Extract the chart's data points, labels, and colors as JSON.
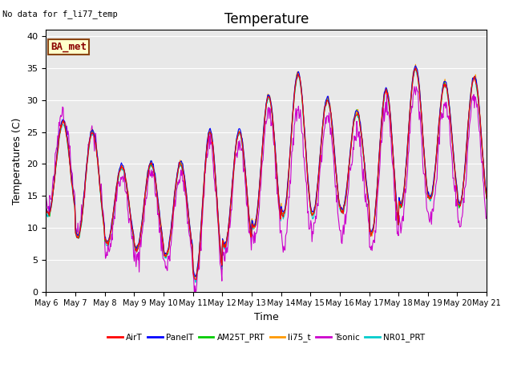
{
  "title": "Temperature",
  "ylabel": "Temperatures (C)",
  "xlabel": "Time",
  "annotation": "No data for f_li77_temp",
  "box_label": "BA_met",
  "ylim": [
    0,
    41
  ],
  "yticks": [
    0,
    5,
    10,
    15,
    20,
    25,
    30,
    35,
    40
  ],
  "xtick_labels": [
    "May 6",
    "May 7",
    "May 8",
    "May 9",
    "May 10",
    "May 11",
    "May 12",
    "May 13",
    "May 14",
    "May 15",
    "May 16",
    "May 17",
    "May 18",
    "May 19",
    "May 20",
    "May 21"
  ],
  "series_colors": {
    "AirT": "#ff0000",
    "PanelT": "#0000ff",
    "AM25T_PRT": "#00cc00",
    "li75_t": "#ff9900",
    "Tsonic": "#cc00cc",
    "NR01_PRT": "#00cccc"
  },
  "series_order": [
    "NR01_PRT",
    "Tsonic",
    "AM25T_PRT",
    "li75_t",
    "PanelT",
    "AirT"
  ],
  "legend_order": [
    "AirT",
    "PanelT",
    "AM25T_PRT",
    "li75_t",
    "Tsonic",
    "NR01_PRT"
  ],
  "background_color": "#e8e8e8",
  "title_fontsize": 12,
  "label_fontsize": 9,
  "tick_fontsize": 8,
  "day_peaks": [
    26.5,
    25.0,
    19.5,
    20.0,
    20.0,
    25.0,
    25.0,
    30.5,
    34.0,
    30.0,
    28.0,
    31.5,
    35.0,
    32.5,
    33.5
  ],
  "day_troughs": [
    12.0,
    8.5,
    7.5,
    6.5,
    5.5,
    2.0,
    7.0,
    10.0,
    12.0,
    12.0,
    12.5,
    9.0,
    13.5,
    14.5,
    13.5
  ],
  "peak_hour": 0.6,
  "trough_hour": 0.25,
  "tsonic_offsets": [
    1.5,
    0.5,
    -1.5,
    -1.5,
    -1.5,
    -1.5,
    -1.5,
    -2.0,
    -5.0,
    -2.5,
    -3.0,
    -2.5,
    -3.0,
    -3.0,
    -3.0
  ]
}
